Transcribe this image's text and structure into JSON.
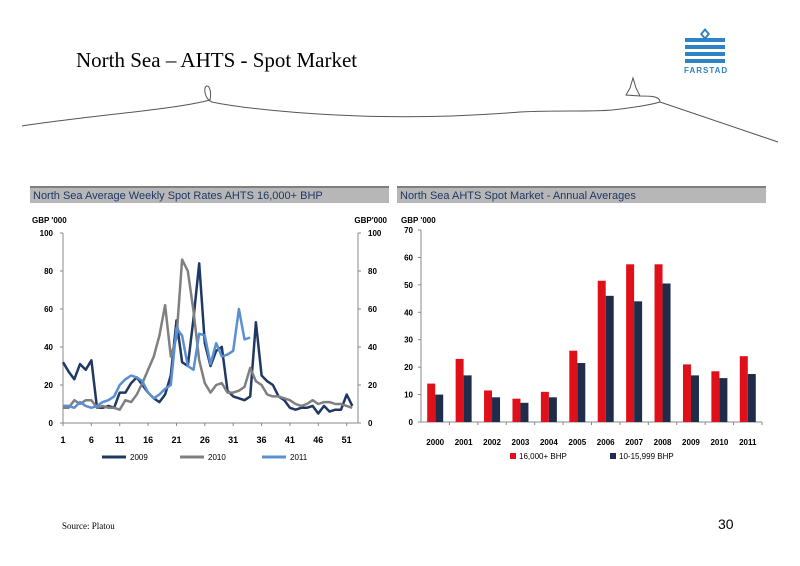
{
  "slide": {
    "title": "North Sea – AHTS - Spot Market",
    "logo_text": "FARSTAD",
    "source": "Source: Platou",
    "page_number": "30"
  },
  "colors": {
    "header_bg": "#b7b7b7",
    "header_text": "#1f3864",
    "series_2009": "#1f3864",
    "series_2010": "#808080",
    "series_2011": "#5b8fd1",
    "bar_red": "#e0101a",
    "bar_navy": "#1f2d4b",
    "logo_blue": "#2e82c6"
  },
  "chart_data": [
    {
      "type": "line",
      "title": "North Sea Average Weekly Spot Rates AHTS 16,000+ BHP",
      "ylabel_left": "GBP '000",
      "ylabel_right": "GBP'000",
      "ylim": [
        0,
        100
      ],
      "yticks": [
        "0",
        "20",
        "40",
        "60",
        "80",
        "100"
      ],
      "xlim": [
        1,
        53
      ],
      "xticks": [
        "1",
        "6",
        "11",
        "16",
        "21",
        "26",
        "31",
        "36",
        "41",
        "46",
        "51"
      ],
      "grid": false,
      "legend": "bottom",
      "series": [
        {
          "name": "2009",
          "x": [
            1,
            2,
            3,
            4,
            5,
            6,
            7,
            8,
            9,
            10,
            11,
            12,
            13,
            14,
            15,
            16,
            17,
            18,
            19,
            20,
            21,
            22,
            23,
            24,
            25,
            26,
            27,
            28,
            29,
            30,
            31,
            32,
            33,
            34,
            35,
            36,
            37,
            38,
            39,
            40,
            41,
            42,
            43,
            44,
            45,
            46,
            47,
            48,
            49,
            50,
            51,
            52
          ],
          "values": [
            32,
            27,
            23,
            31,
            28,
            33,
            8,
            8,
            9,
            8,
            16,
            16,
            21,
            24,
            20,
            16,
            13,
            11,
            15,
            25,
            54,
            32,
            30,
            55,
            84,
            42,
            30,
            38,
            40,
            17,
            14,
            13,
            12,
            14,
            53,
            25,
            22,
            20,
            14,
            12,
            8,
            7,
            8,
            8,
            9,
            5,
            9,
            6,
            7,
            7,
            15,
            9
          ]
        },
        {
          "name": "2010",
          "x": [
            1,
            2,
            3,
            4,
            5,
            6,
            7,
            8,
            9,
            10,
            11,
            12,
            13,
            14,
            15,
            16,
            17,
            18,
            19,
            20,
            21,
            22,
            23,
            24,
            25,
            26,
            27,
            28,
            29,
            30,
            31,
            32,
            33,
            34,
            35,
            36,
            37,
            38,
            39,
            40,
            41,
            42,
            43,
            44,
            45,
            46,
            47,
            48,
            49,
            50,
            51,
            52
          ],
          "values": [
            8,
            8,
            12,
            10,
            12,
            12,
            8,
            9,
            8,
            8,
            7,
            12,
            11,
            15,
            21,
            28,
            35,
            46,
            62,
            35,
            45,
            86,
            80,
            59,
            33,
            21,
            16,
            20,
            21,
            16,
            16,
            17,
            19,
            29,
            22,
            20,
            15,
            14,
            14,
            13,
            12,
            10,
            9,
            10,
            12,
            10,
            11,
            11,
            10,
            10,
            9,
            8
          ]
        },
        {
          "name": "2011",
          "x": [
            1,
            2,
            3,
            4,
            5,
            6,
            7,
            8,
            9,
            10,
            11,
            12,
            13,
            14,
            15,
            16,
            17,
            18,
            19,
            20,
            21,
            22,
            23,
            24,
            25,
            26,
            27,
            28,
            29,
            30,
            31,
            32,
            33,
            34
          ],
          "values": [
            9,
            9,
            8,
            11,
            9,
            8,
            9,
            11,
            12,
            14,
            20,
            23,
            25,
            24,
            22,
            16,
            13,
            15,
            18,
            20,
            50,
            46,
            30,
            28,
            47,
            46,
            31,
            42,
            35,
            36,
            38,
            60,
            44,
            45
          ]
        }
      ]
    },
    {
      "type": "bar",
      "title": "North Sea AHTS Spot Market - Annual Averages",
      "ylabel": "GBP '000",
      "ylim": [
        0,
        70
      ],
      "yticks": [
        "0",
        "10",
        "20",
        "30",
        "40",
        "50",
        "60",
        "70"
      ],
      "categories": [
        "2000",
        "2001",
        "2002",
        "2003",
        "2004",
        "2005",
        "2006",
        "2007",
        "2008",
        "2009",
        "2010",
        "2011"
      ],
      "legend": "bottom",
      "series": [
        {
          "name": "16,000+ BHP",
          "values": [
            14,
            23,
            11.5,
            8.5,
            11,
            26,
            51.5,
            57.5,
            57.5,
            21,
            18.5,
            24
          ]
        },
        {
          "name": "10-15,999 BHP",
          "values": [
            10,
            17,
            9,
            7,
            9,
            21.5,
            46,
            44,
            50.5,
            17,
            16,
            17.5
          ]
        }
      ]
    }
  ]
}
